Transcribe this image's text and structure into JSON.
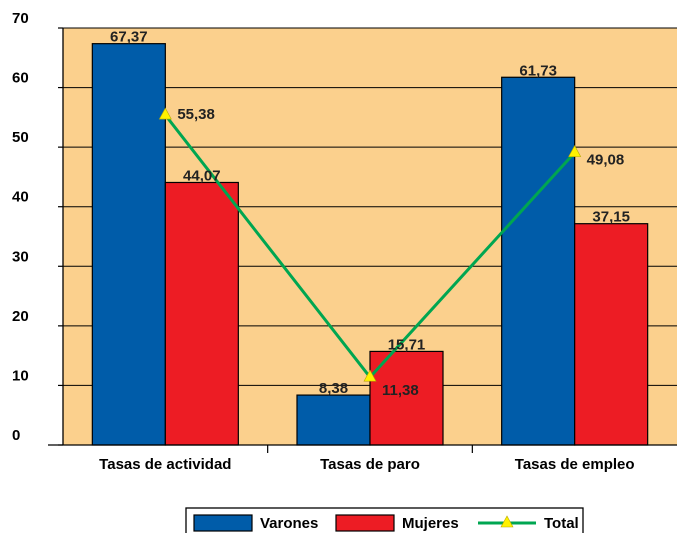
{
  "chart_data": {
    "type": "bar",
    "categories": [
      "Tasas de actividad",
      "Tasas de paro",
      "Tasas de empleo"
    ],
    "series": [
      {
        "name": "Varones",
        "type": "bar",
        "values": [
          67.37,
          8.38,
          61.73
        ],
        "labels": [
          "67,37",
          "8,38",
          "61,73"
        ],
        "color": "#005ca9"
      },
      {
        "name": "Mujeres",
        "type": "bar",
        "values": [
          44.07,
          15.71,
          37.15
        ],
        "labels": [
          "44,07",
          "15,71",
          "37,15"
        ],
        "color": "#ed1c24"
      },
      {
        "name": "Total",
        "type": "line",
        "values": [
          55.38,
          11.38,
          49.08
        ],
        "labels": [
          "55,38",
          "11,38",
          "49,08"
        ],
        "color": "#00a651",
        "marker_color": "#fff200"
      }
    ],
    "ylim": [
      0,
      70
    ],
    "yticks": [
      "0",
      "10",
      "20",
      "30",
      "40",
      "50",
      "60",
      "70"
    ],
    "title": "",
    "xlabel": "",
    "ylabel": "",
    "grid": true,
    "legend_position": "bottom",
    "plot_background": "#fbd08d"
  }
}
